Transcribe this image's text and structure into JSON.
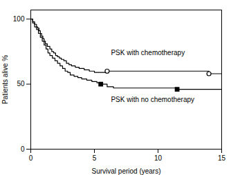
{
  "chart_data": {
    "type": "step",
    "xlabel": "Survival period (years)",
    "ylabel": "Patients alive %",
    "xlim": [
      0,
      15
    ],
    "ylim": [
      0,
      107
    ],
    "xticks": [
      0,
      5,
      10,
      15
    ],
    "yticks": [
      0,
      50,
      100
    ],
    "series": [
      {
        "type": "step",
        "color": "#000000",
        "x": [
          0,
          0.15,
          0.3,
          0.45,
          0.55,
          0.65,
          0.75,
          0.85,
          0.95,
          1.05,
          1.15,
          1.3,
          1.5,
          1.65,
          1.8,
          1.95,
          2.1,
          2.25,
          2.4,
          2.6,
          2.8,
          3.0,
          3.2,
          3.5,
          3.8,
          4.2,
          4.6,
          5.0,
          5.5,
          6.0,
          6.5,
          7.0,
          8.5,
          10.0,
          14.0,
          15.0
        ],
        "values": [
          100,
          98,
          96,
          94,
          93,
          91,
          89,
          87,
          85,
          83,
          81,
          79,
          77,
          75,
          74,
          72,
          71,
          70,
          69,
          68,
          66,
          65,
          64,
          63,
          62,
          61,
          60,
          59,
          59,
          60,
          60,
          60,
          60,
          60,
          58,
          58
        ]
      },
      {
        "type": "step",
        "color": "#000000",
        "x": [
          0,
          0.15,
          0.3,
          0.45,
          0.6,
          0.75,
          0.9,
          1.05,
          1.2,
          1.35,
          1.5,
          1.7,
          1.9,
          2.1,
          2.3,
          2.5,
          2.7,
          2.9,
          3.1,
          3.4,
          3.7,
          4.0,
          4.4,
          4.8,
          5.2,
          5.6,
          6.0,
          6.5,
          7.0,
          8.5,
          10.5,
          11.5,
          15.0
        ],
        "values": [
          100,
          97,
          94,
          92,
          89,
          86,
          83,
          80,
          77,
          74,
          72,
          70,
          68,
          66,
          64,
          62,
          60,
          59,
          57,
          56,
          55,
          54,
          53,
          52,
          51,
          50,
          48,
          47,
          47,
          47,
          47,
          46,
          46
        ]
      },
      {
        "type": "scatter",
        "marker": "circle",
        "color": "#000000",
        "x": [
          6.0,
          14.0
        ],
        "values": [
          60,
          58
        ]
      },
      {
        "type": "scatter",
        "marker": "square",
        "color": "#000000",
        "x": [
          5.5,
          11.5
        ],
        "values": [
          50,
          46
        ]
      }
    ],
    "annotations": [
      {
        "text": "PSK with chemotherapy",
        "x": 6.3,
        "y": 74
      },
      {
        "text": "PSK with no chemotherapy",
        "x": 6.3,
        "y": 38
      }
    ]
  }
}
